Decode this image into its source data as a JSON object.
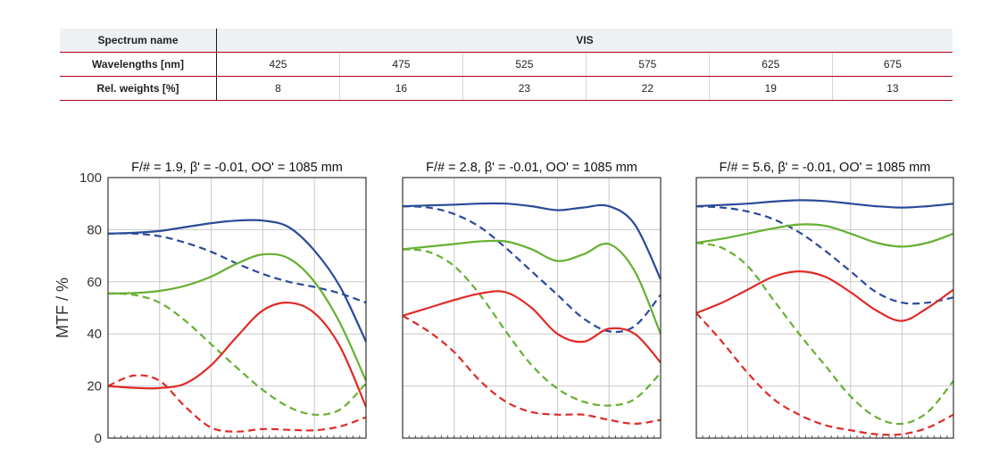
{
  "table": {
    "row_headers": [
      "Spectrum name",
      "Wavelengths [nm]",
      "Rel. weights [%]"
    ],
    "spectrum_name": "VIS",
    "wavelengths": [
      "425",
      "475",
      "525",
      "575",
      "625",
      "675"
    ],
    "weights": [
      "8",
      "16",
      "23",
      "22",
      "19",
      "13"
    ]
  },
  "colors": {
    "blue": "#2a4a9a",
    "green": "#66b032",
    "red": "#e02a26",
    "table_rule": "#b3001b"
  },
  "chart_data": [
    {
      "type": "line",
      "title": "F/# = 1.9, β' = -0.01, OO' = 1085 mm",
      "ylabel": "MTF / %",
      "ylim": [
        0,
        100
      ],
      "yticks": [
        "0",
        "20",
        "40",
        "60",
        "80",
        "100"
      ],
      "xlim": [
        0,
        1
      ],
      "x": [
        0,
        0.1,
        0.2,
        0.3,
        0.4,
        0.5,
        0.6,
        0.7,
        0.8,
        0.9,
        1.0
      ],
      "series": [
        {
          "color": "blue",
          "style": "solid",
          "values": [
            78.5,
            78.8,
            79.5,
            81,
            82.5,
            83.5,
            83.5,
            81,
            72,
            58,
            37
          ]
        },
        {
          "color": "blue",
          "style": "dashed",
          "values": [
            78.5,
            78.5,
            77.5,
            75,
            71.5,
            67,
            63,
            60,
            58,
            55.5,
            52
          ]
        },
        {
          "color": "green",
          "style": "solid",
          "values": [
            55.5,
            55.7,
            56.5,
            58.5,
            62,
            67,
            70.5,
            69,
            60,
            44,
            22
          ]
        },
        {
          "color": "green",
          "style": "dashed",
          "values": [
            55.5,
            55,
            52,
            45,
            36,
            27,
            18.5,
            12,
            9,
            11,
            21
          ]
        },
        {
          "color": "red",
          "style": "solid",
          "values": [
            20,
            19.3,
            19.2,
            21,
            28,
            39,
            49,
            52,
            48,
            35,
            12
          ]
        },
        {
          "color": "red",
          "style": "dashed",
          "values": [
            20,
            24,
            22,
            12,
            4,
            2.5,
            3.5,
            3.2,
            3,
            4.5,
            8
          ]
        }
      ]
    },
    {
      "type": "line",
      "title": "F/# = 2.8, β' = -0.01, OO' = 1085 mm",
      "ylabel": "",
      "ylim": [
        0,
        100
      ],
      "xlim": [
        0,
        1
      ],
      "x": [
        0,
        0.1,
        0.2,
        0.3,
        0.4,
        0.5,
        0.6,
        0.7,
        0.8,
        0.9,
        1.0
      ],
      "series": [
        {
          "color": "blue",
          "style": "solid",
          "values": [
            89,
            89.3,
            89.6,
            90,
            90,
            89,
            87.5,
            88.5,
            89,
            82,
            61
          ]
        },
        {
          "color": "blue",
          "style": "dashed",
          "values": [
            89,
            88.5,
            86,
            81,
            73,
            64,
            55,
            46,
            41,
            43,
            55
          ]
        },
        {
          "color": "green",
          "style": "solid",
          "values": [
            72.5,
            73.5,
            74.5,
            75.5,
            75.5,
            72.5,
            68,
            70.5,
            74.5,
            64,
            40
          ]
        },
        {
          "color": "green",
          "style": "dashed",
          "values": [
            72.5,
            71.5,
            66,
            55,
            41,
            28,
            19,
            14,
            12.5,
            15,
            25
          ]
        },
        {
          "color": "red",
          "style": "solid",
          "values": [
            47,
            50,
            53,
            55.5,
            56,
            50,
            40,
            37,
            42,
            40,
            29
          ]
        },
        {
          "color": "red",
          "style": "dashed",
          "values": [
            47,
            41,
            33,
            22,
            14,
            10,
            9,
            9,
            7,
            5.5,
            7
          ]
        }
      ]
    },
    {
      "type": "line",
      "title": "F/# = 5.6, β' = -0.01, OO' = 1085 mm",
      "ylabel": "",
      "ylim": [
        0,
        100
      ],
      "xlim": [
        0,
        1
      ],
      "x": [
        0,
        0.1,
        0.2,
        0.3,
        0.4,
        0.5,
        0.6,
        0.7,
        0.8,
        0.9,
        1.0
      ],
      "series": [
        {
          "color": "blue",
          "style": "solid",
          "values": [
            89,
            89.5,
            90,
            90.8,
            91.3,
            91,
            90,
            89,
            88.5,
            89,
            90
          ]
        },
        {
          "color": "blue",
          "style": "dashed",
          "values": [
            89,
            88.5,
            87,
            84,
            79,
            72,
            64,
            56,
            52,
            52,
            54
          ]
        },
        {
          "color": "green",
          "style": "solid",
          "values": [
            75,
            76.5,
            78.5,
            80.5,
            82,
            81.5,
            78.5,
            75,
            73.5,
            75,
            78.5
          ]
        },
        {
          "color": "green",
          "style": "dashed",
          "values": [
            75,
            73,
            66,
            53,
            40,
            28,
            16,
            8,
            5.5,
            10,
            22
          ]
        },
        {
          "color": "red",
          "style": "solid",
          "values": [
            48,
            52,
            57,
            62,
            64,
            62,
            56,
            49,
            45,
            50,
            57
          ]
        },
        {
          "color": "red",
          "style": "dashed",
          "values": [
            48,
            37,
            25,
            15,
            9,
            5,
            3,
            1.5,
            1.5,
            4,
            9
          ]
        }
      ]
    }
  ]
}
